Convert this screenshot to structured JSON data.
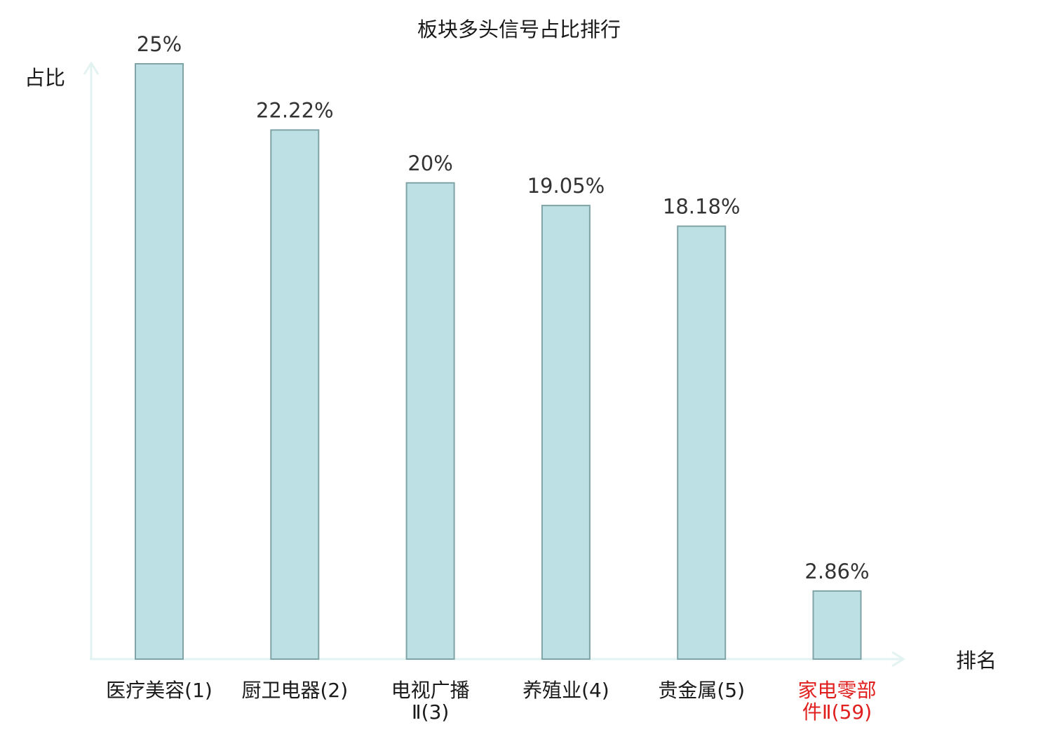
{
  "chart_data": {
    "type": "bar",
    "title": "板块多头信号占比排行",
    "ylabel": "占比",
    "xlabel": "排名",
    "categories": [
      [
        "医疗美容(1)"
      ],
      [
        "厨卫电器(2)"
      ],
      [
        "电视广播",
        "Ⅱ(3)"
      ],
      [
        "养殖业(4)"
      ],
      [
        "贵金属(5)"
      ],
      [
        "家电零部",
        "件Ⅱ(59)"
      ]
    ],
    "values": [
      25,
      22.22,
      20,
      19.05,
      18.18,
      2.86
    ],
    "value_labels": [
      "25%",
      "22.22%",
      "20%",
      "19.05%",
      "18.18%",
      "2.86%"
    ],
    "highlight_index": 5,
    "ylim": [
      0,
      25
    ],
    "grid": false,
    "legend": "none",
    "colors": {
      "bar_fill": "#bce0e3",
      "bar_stroke": "#7fa3a7",
      "axis": "#e2f3f1",
      "text": "#333333",
      "highlight_text": "#e0201e"
    }
  }
}
